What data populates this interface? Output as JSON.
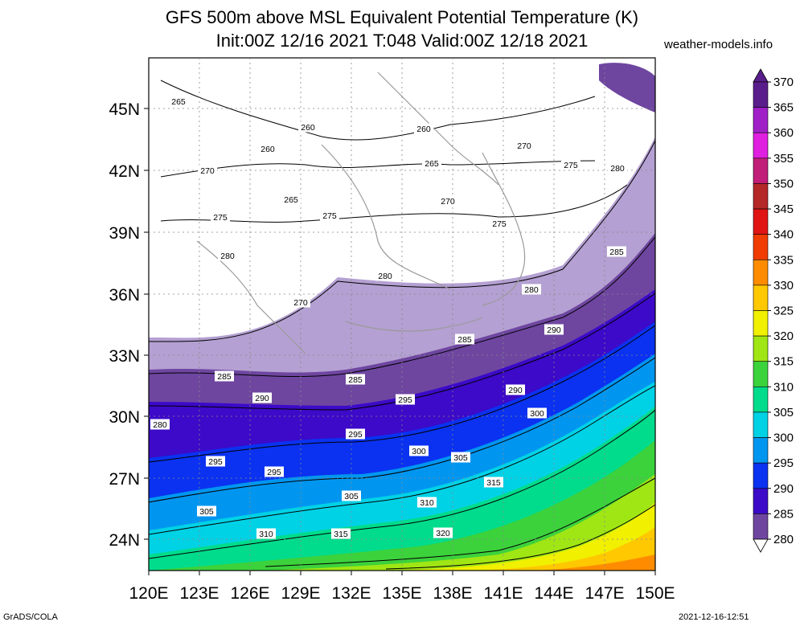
{
  "header": {
    "title_line1": "GFS 500m above MSL Equivalent Potential Temperature (K)",
    "title_line2": "Init:00Z 12/16 2021 T:048 Valid:00Z 12/18 2021",
    "brand": "weather-models.info"
  },
  "footer": {
    "left": "GrADS/COLA",
    "right": "2021-12-16-12:51"
  },
  "map": {
    "lon_labels": [
      "120E",
      "123E",
      "126E",
      "129E",
      "132E",
      "135E",
      "138E",
      "141E",
      "144E",
      "147E",
      "150E"
    ],
    "lat_labels": [
      "45N",
      "42N",
      "39N",
      "36N",
      "33N",
      "30N",
      "27N",
      "24N"
    ],
    "contour_labels": [
      "265",
      "260",
      "260",
      "260",
      "265",
      "270",
      "270",
      "270",
      "275",
      "280",
      "265",
      "275",
      "275",
      "270",
      "280",
      "275",
      "280",
      "285",
      "280",
      "270",
      "285",
      "290",
      "285",
      "285",
      "290",
      "295",
      "290",
      "295",
      "300",
      "280",
      "295",
      "300",
      "305",
      "295",
      "300",
      "305",
      "310",
      "315",
      "305",
      "310",
      "315",
      "320"
    ]
  },
  "legend": {
    "levels": [
      "370",
      "365",
      "360",
      "355",
      "350",
      "345",
      "340",
      "335",
      "330",
      "325",
      "320",
      "315",
      "310",
      "305",
      "300",
      "295",
      "290",
      "285",
      "280"
    ],
    "colors": {
      "370": "#5a1e8c",
      "365": "#a020c8",
      "360": "#e020e0",
      "355": "#c01e78",
      "350": "#b42828",
      "345": "#e11414",
      "340": "#f03c00",
      "335": "#ff8c00",
      "330": "#ffc800",
      "325": "#f0f000",
      "320": "#a0e614",
      "315": "#3cd23c",
      "310": "#00dc8c",
      "305": "#00d2e6",
      "300": "#0096f0",
      "295": "#0a32f0",
      "290": "#3c0ac8",
      "285": "#6e46a0",
      "280": "#b4a0d2"
    }
  }
}
